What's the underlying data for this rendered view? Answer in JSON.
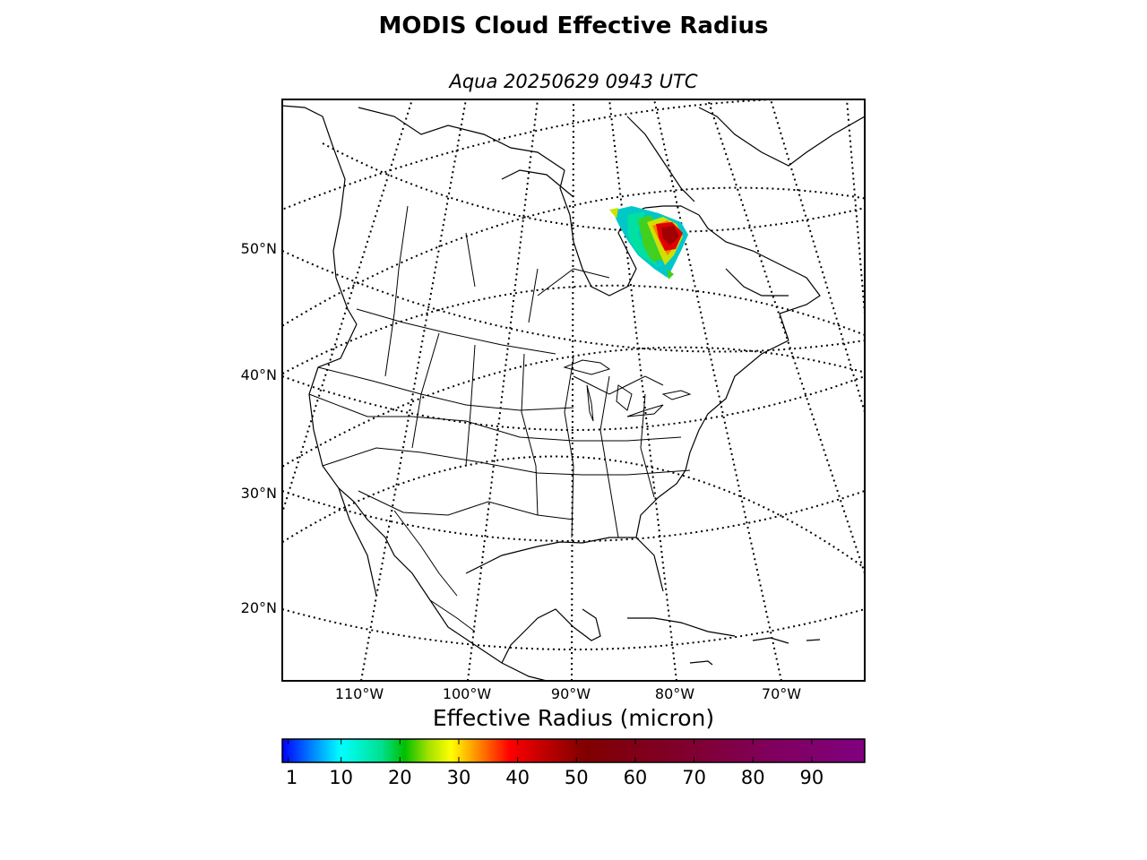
{
  "header": {
    "title": "MODIS Cloud Effective Radius",
    "subtitle": "Aqua 20250629 0943 UTC"
  },
  "map": {
    "projection": "lambert-conformal",
    "region": "North America",
    "latitude_labels": [
      "50°N",
      "40°N",
      "30°N",
      "20°N"
    ],
    "longitude_labels": [
      "110°W",
      "100°W",
      "90°W",
      "80°W",
      "70°W"
    ],
    "coastline_color": "#000000",
    "graticule_style": "dotted",
    "data_patch": {
      "region": "Northern Quebec / Labrador",
      "colors": [
        "#00c8c8",
        "#00e0a0",
        "#40d020",
        "#d0e000",
        "#ff8000",
        "#e00000",
        "#a00000"
      ]
    }
  },
  "colorbar": {
    "title": "Effective Radius (micron)",
    "tick_labels": [
      "1",
      "10",
      "20",
      "30",
      "40",
      "50",
      "60",
      "70",
      "80",
      "90"
    ],
    "tick_values": [
      1,
      10,
      20,
      30,
      40,
      50,
      60,
      70,
      80,
      90
    ],
    "range": [
      0,
      99
    ],
    "colors": [
      "#0000ff",
      "#0080ff",
      "#00ffff",
      "#00e080",
      "#00c000",
      "#c0ff00",
      "#ffff00",
      "#ff8000",
      "#ff0000",
      "#c00000",
      "#800000",
      "#800030",
      "#800060",
      "#800080"
    ]
  }
}
